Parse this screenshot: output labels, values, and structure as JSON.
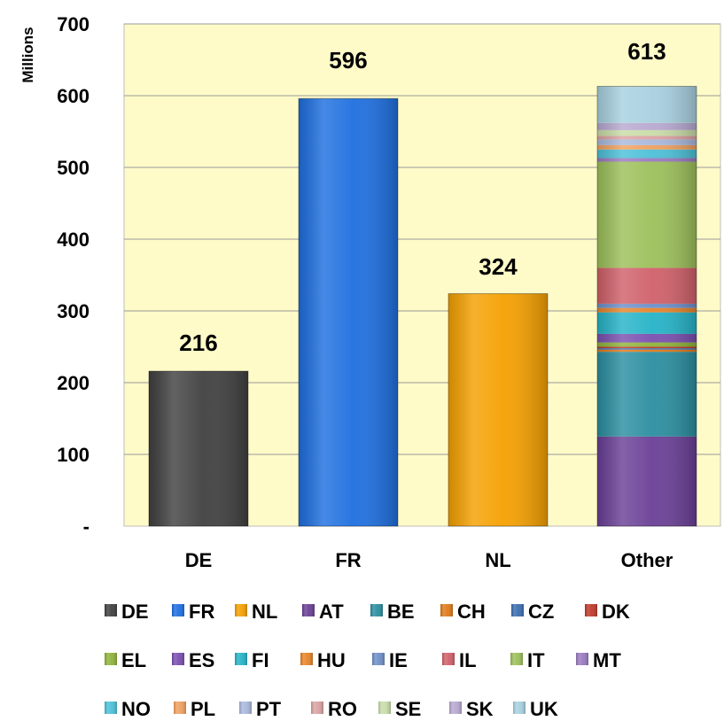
{
  "chart_data": {
    "type": "bar",
    "stacked": true,
    "ylabel": "Millions",
    "xlabel": "",
    "ylim": [
      0,
      700
    ],
    "yticks": [
      {
        "value": 0,
        "label": "-"
      },
      {
        "value": 100,
        "label": "100"
      },
      {
        "value": 200,
        "label": "200"
      },
      {
        "value": 300,
        "label": "300"
      },
      {
        "value": 400,
        "label": "400"
      },
      {
        "value": 500,
        "label": "500"
      },
      {
        "value": 600,
        "label": "600"
      },
      {
        "value": 700,
        "label": "700"
      }
    ],
    "grid": true,
    "plot_background": "#fefbc8",
    "legend_position": "bottom",
    "categories": [
      "DE",
      "FR",
      "NL",
      "Other"
    ],
    "totals": [
      "216",
      "596",
      "324",
      "613"
    ],
    "series": [
      {
        "name": "DE",
        "color": "#404040",
        "values": [
          216,
          0,
          0,
          0
        ]
      },
      {
        "name": "FR",
        "color": "#1e6fe0",
        "values": [
          0,
          596,
          0,
          0
        ]
      },
      {
        "name": "NL",
        "color": "#f5a000",
        "values": [
          0,
          0,
          324,
          0
        ]
      },
      {
        "name": "AT",
        "color": "#6a3f96",
        "values": [
          0,
          0,
          0,
          125
        ]
      },
      {
        "name": "BE",
        "color": "#2a8ea0",
        "values": [
          0,
          0,
          0,
          118
        ]
      },
      {
        "name": "CH",
        "color": "#e07a1a",
        "values": [
          0,
          0,
          0,
          3
        ]
      },
      {
        "name": "CZ",
        "color": "#3b6eb0",
        "values": [
          0,
          0,
          0,
          2
        ]
      },
      {
        "name": "DK",
        "color": "#c0392b",
        "values": [
          0,
          0,
          0,
          2
        ]
      },
      {
        "name": "EL",
        "color": "#8fb43a",
        "values": [
          0,
          0,
          0,
          6
        ]
      },
      {
        "name": "ES",
        "color": "#7a4fb0",
        "values": [
          0,
          0,
          0,
          12
        ]
      },
      {
        "name": "FI",
        "color": "#25b3c8",
        "values": [
          0,
          0,
          0,
          30
        ]
      },
      {
        "name": "HU",
        "color": "#e8842a",
        "values": [
          0,
          0,
          0,
          6
        ]
      },
      {
        "name": "IE",
        "color": "#6f8fc8",
        "values": [
          0,
          0,
          0,
          6
        ]
      },
      {
        "name": "IL",
        "color": "#d0606a",
        "values": [
          0,
          0,
          0,
          50
        ]
      },
      {
        "name": "IT",
        "color": "#9cc05a",
        "values": [
          0,
          0,
          0,
          148
        ]
      },
      {
        "name": "MT",
        "color": "#9a7ac0",
        "values": [
          0,
          0,
          0,
          5
        ]
      },
      {
        "name": "NO",
        "color": "#4cc0d8",
        "values": [
          0,
          0,
          0,
          12
        ]
      },
      {
        "name": "PL",
        "color": "#f0a060",
        "values": [
          0,
          0,
          0,
          6
        ]
      },
      {
        "name": "PT",
        "color": "#a9b8dc",
        "values": [
          0,
          0,
          0,
          8
        ]
      },
      {
        "name": "RO",
        "color": "#dba3a3",
        "values": [
          0,
          0,
          0,
          5
        ]
      },
      {
        "name": "SE",
        "color": "#c8dca8",
        "values": [
          0,
          0,
          0,
          8
        ]
      },
      {
        "name": "SK",
        "color": "#b8a8d0",
        "values": [
          0,
          0,
          0,
          10
        ]
      },
      {
        "name": "UK",
        "color": "#a8d0e0",
        "values": [
          0,
          0,
          0,
          51
        ]
      }
    ]
  }
}
